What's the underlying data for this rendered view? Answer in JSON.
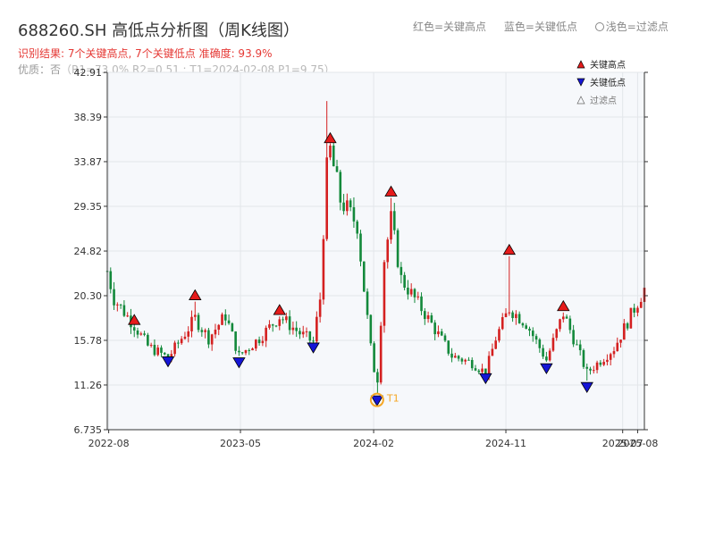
{
  "header": {
    "title": "688260.SH 高低点分析图（周K线图）",
    "legend_text": "红色=关键高点",
    "legend_text2": "蓝色=关键低点",
    "legend_text3": "浅色=过滤点",
    "result_line": "识别结果: 7个关键高点, 7个关键低点   准确度: 93.9%",
    "status_prefix": "优质：否",
    "status_detail": "（R1=73.0%  R2=0.51 ; T1=2024-02-08 P1=9.75）"
  },
  "chart_data": {
    "type": "candlestick",
    "title": "688260.SH 高低点分析图（周K线图）",
    "y_ticks": [
      "42.91",
      "38.39",
      "33.87",
      "29.35",
      "24.82",
      "20.30",
      "15.78",
      "11.26",
      "6.735"
    ],
    "ylim": [
      6.735,
      42.91
    ],
    "x_ticks": [
      "2022-08",
      "2023-05",
      "2024-02",
      "2024-11",
      "2025-07",
      "2025-08"
    ],
    "x_range": [
      "2022-07-29",
      "2025-08-15"
    ],
    "grid": true,
    "legend": {
      "position": "top-right",
      "entries": [
        {
          "label": "关键高点",
          "marker": "triangle-up",
          "color": "#e51b1b"
        },
        {
          "label": "关键低点",
          "marker": "triangle-down",
          "color": "#1515d6"
        },
        {
          "label": "过滤点",
          "marker": "triangle-up-outline",
          "color": "#999999"
        }
      ]
    },
    "key_highs": [
      {
        "date": "2022-09-23",
        "price": 17.8
      },
      {
        "date": "2023-01-27",
        "price": 20.3
      },
      {
        "date": "2023-07-21",
        "price": 18.8
      },
      {
        "date": "2023-11-03",
        "price": 36.2
      },
      {
        "date": "2024-03-08",
        "price": 30.8
      },
      {
        "date": "2024-11-08",
        "price": 24.9
      },
      {
        "date": "2025-02-28",
        "price": 19.2
      }
    ],
    "key_lows": [
      {
        "date": "2022-12-02",
        "price": 13.7
      },
      {
        "date": "2023-04-28",
        "price": 13.6
      },
      {
        "date": "2023-09-29",
        "price": 15.1
      },
      {
        "date": "2024-02-08",
        "price": 9.75
      },
      {
        "date": "2024-09-20",
        "price": 12.0
      },
      {
        "date": "2025-01-24",
        "price": 13.0
      },
      {
        "date": "2025-04-18",
        "price": 11.1
      }
    ],
    "t1": {
      "label": "T1",
      "date": "2024-02-08",
      "price": 9.75,
      "color": "#f5a623"
    },
    "anchors": [
      {
        "date": "2022-07-29",
        "price": 22.8
      },
      {
        "date": "2022-08-12",
        "price": 20.0
      },
      {
        "date": "2022-09-23",
        "price": 17.3
      },
      {
        "date": "2022-10-21",
        "price": 15.2
      },
      {
        "date": "2022-12-02",
        "price": 14.0
      },
      {
        "date": "2023-01-27",
        "price": 18.0
      },
      {
        "date": "2023-02-24",
        "price": 16.0
      },
      {
        "date": "2023-03-31",
        "price": 18.3
      },
      {
        "date": "2023-04-28",
        "price": 14.2
      },
      {
        "date": "2023-06-09",
        "price": 16.0
      },
      {
        "date": "2023-07-21",
        "price": 18.2
      },
      {
        "date": "2023-09-01",
        "price": 16.5
      },
      {
        "date": "2023-09-29",
        "price": 15.6
      },
      {
        "date": "2023-10-13",
        "price": 20.0
      },
      {
        "date": "2023-10-20",
        "price": 27.0
      },
      {
        "date": "2023-10-27",
        "price": 33.0
      },
      {
        "date": "2023-11-03",
        "price": 35.0
      },
      {
        "date": "2023-11-24",
        "price": 30.0
      },
      {
        "date": "2023-12-29",
        "price": 27.5
      },
      {
        "date": "2024-01-12",
        "price": 21.0
      },
      {
        "date": "2024-01-26",
        "price": 15.0
      },
      {
        "date": "2024-02-08",
        "price": 11.0
      },
      {
        "date": "2024-02-23",
        "price": 24.0
      },
      {
        "date": "2024-03-08",
        "price": 28.0
      },
      {
        "date": "2024-03-29",
        "price": 22.0
      },
      {
        "date": "2024-05-17",
        "price": 18.5
      },
      {
        "date": "2024-07-12",
        "price": 14.2
      },
      {
        "date": "2024-08-23",
        "price": 13.5
      },
      {
        "date": "2024-09-20",
        "price": 12.5
      },
      {
        "date": "2024-10-11",
        "price": 16.0
      },
      {
        "date": "2024-11-08",
        "price": 19.0
      },
      {
        "date": "2024-12-13",
        "price": 17.5
      },
      {
        "date": "2025-01-24",
        "price": 13.8
      },
      {
        "date": "2025-02-28",
        "price": 18.5
      },
      {
        "date": "2025-03-21",
        "price": 16.0
      },
      {
        "date": "2025-04-18",
        "price": 12.5
      },
      {
        "date": "2025-06-13",
        "price": 15.0
      },
      {
        "date": "2025-07-25",
        "price": 19.0
      },
      {
        "date": "2025-08-15",
        "price": 21.0
      }
    ]
  }
}
